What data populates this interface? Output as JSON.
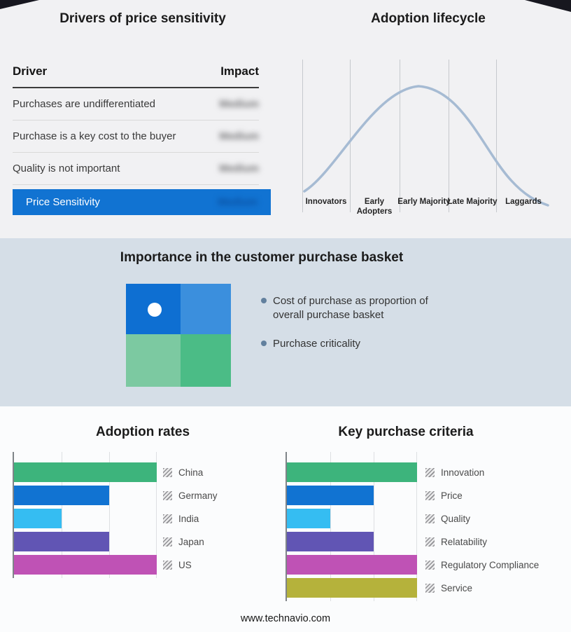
{
  "page": {
    "footer": "www.technavio.com"
  },
  "drivers": {
    "title": "Drivers of price sensitivity",
    "columns": {
      "driver": "Driver",
      "impact": "Impact"
    },
    "rows": [
      {
        "driver": "Purchases are undifferentiated",
        "impact": "Medium"
      },
      {
        "driver": "Purchase is a key cost to the buyer",
        "impact": "Medium"
      },
      {
        "driver": "Quality is not important",
        "impact": "Medium"
      }
    ],
    "summary": {
      "label": "Price Sensitivity",
      "impact": "Medium"
    },
    "accent_color": "#1173d2",
    "impact_values_blurred": true
  },
  "lifecycle": {
    "title": "Adoption lifecycle",
    "stages": [
      "Innovators",
      "Early Adopters",
      "Early Majority",
      "Late Majority",
      "Laggards"
    ],
    "curve_color": "#a6bbd3"
  },
  "basket": {
    "title": "Importance in the customer purchase basket",
    "bullets": [
      "Cost of purchase as proportion of overall purchase basket",
      "Purchase criticality"
    ],
    "quadrant_colors": {
      "top_left": "#0e6fd2",
      "top_right": "#3b8fdd",
      "bottom_left": "#7cc9a1",
      "bottom_right": "#4bbc86"
    },
    "band_background": "#d5dee7"
  },
  "chart_data": [
    {
      "type": "table",
      "title": "Drivers of price sensitivity",
      "columns": [
        "Driver",
        "Impact"
      ],
      "rows": [
        [
          "Purchases are undifferentiated",
          "Medium"
        ],
        [
          "Purchase is a key cost to the buyer",
          "Medium"
        ],
        [
          "Quality is not important",
          "Medium"
        ],
        [
          "Price Sensitivity",
          "Medium"
        ]
      ],
      "note": "Impact values are blurred (redacted) in the source image"
    },
    {
      "type": "line",
      "title": "Adoption lifecycle",
      "categories": [
        "Innovators",
        "Early Adopters",
        "Early Majority",
        "Late Majority",
        "Laggards"
      ],
      "shape": "bell curve rising from Innovators, peaking at Early Majority, falling to Laggards",
      "line_color": "#a6bbd3",
      "grid": true,
      "legend_position": "none"
    },
    {
      "type": "bar",
      "title": "Adoption rates",
      "orientation": "horizontal",
      "categories": [
        "China",
        "Germany",
        "India",
        "Japan",
        "US"
      ],
      "values": [
        3,
        2,
        1,
        2,
        3
      ],
      "xmax": 3,
      "colors": [
        "#3db47c",
        "#1173d2",
        "#35bdf2",
        "#6155b4",
        "#bf52b5"
      ],
      "xlabel": "",
      "ylabel": "",
      "axis_tick_labels_shown": false,
      "legend_position": "right"
    },
    {
      "type": "bar",
      "title": "Key purchase criteria",
      "orientation": "horizontal",
      "categories": [
        "Innovation",
        "Price",
        "Quality",
        "Relatability",
        "Regulatory Compliance",
        "Service"
      ],
      "values": [
        3,
        2,
        1,
        2,
        3,
        3
      ],
      "xmax": 3,
      "colors": [
        "#3db47c",
        "#1173d2",
        "#35bdf2",
        "#6155b4",
        "#bf52b5",
        "#b5b23b"
      ],
      "xlabel": "",
      "ylabel": "",
      "axis_tick_labels_shown": false,
      "legend_position": "right"
    }
  ]
}
